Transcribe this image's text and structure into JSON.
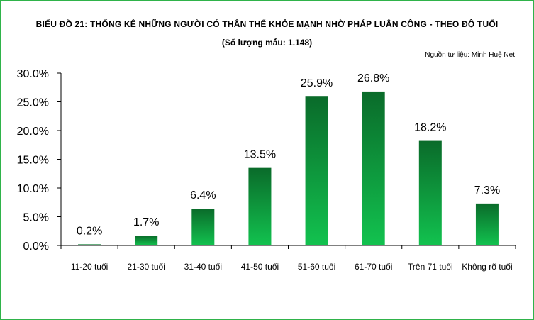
{
  "chart_data": {
    "type": "bar",
    "title": "BIỂU ĐỒ 21: THỐNG KÊ NHỮNG NGƯỜI CÓ THÂN THỂ KHỎE MẠNH NHỜ PHÁP LUÂN CÔNG - THEO ĐỘ TUỔI",
    "subtitle": "(Số lượng mẫu: 1.148)",
    "source": "Nguồn tư liệu: Minh Huệ Net",
    "xlabel": "",
    "ylabel": "",
    "categories": [
      "11-20 tuổi",
      "21-30 tuổi",
      "31-40 tuổi",
      "41-50 tuổi",
      "51-60 tuổi",
      "61-70 tuổi",
      "Trên 71 tuổi",
      "Không rõ tuổi"
    ],
    "values": [
      0.2,
      1.7,
      6.4,
      13.5,
      25.9,
      26.8,
      18.2,
      7.3
    ],
    "value_labels": [
      "0.2%",
      "1.7%",
      "6.4%",
      "13.5%",
      "25.9%",
      "26.8%",
      "18.2%",
      "7.3%"
    ],
    "ylim": [
      0,
      30
    ],
    "yticks": [
      "0.0%",
      "5.0%",
      "10.0%",
      "15.0%",
      "20.0%",
      "25.0%",
      "30.0%"
    ],
    "grid": false,
    "legend": "none",
    "bar_color_top": "#0a6b2a",
    "bar_color_bottom": "#12c24f"
  }
}
